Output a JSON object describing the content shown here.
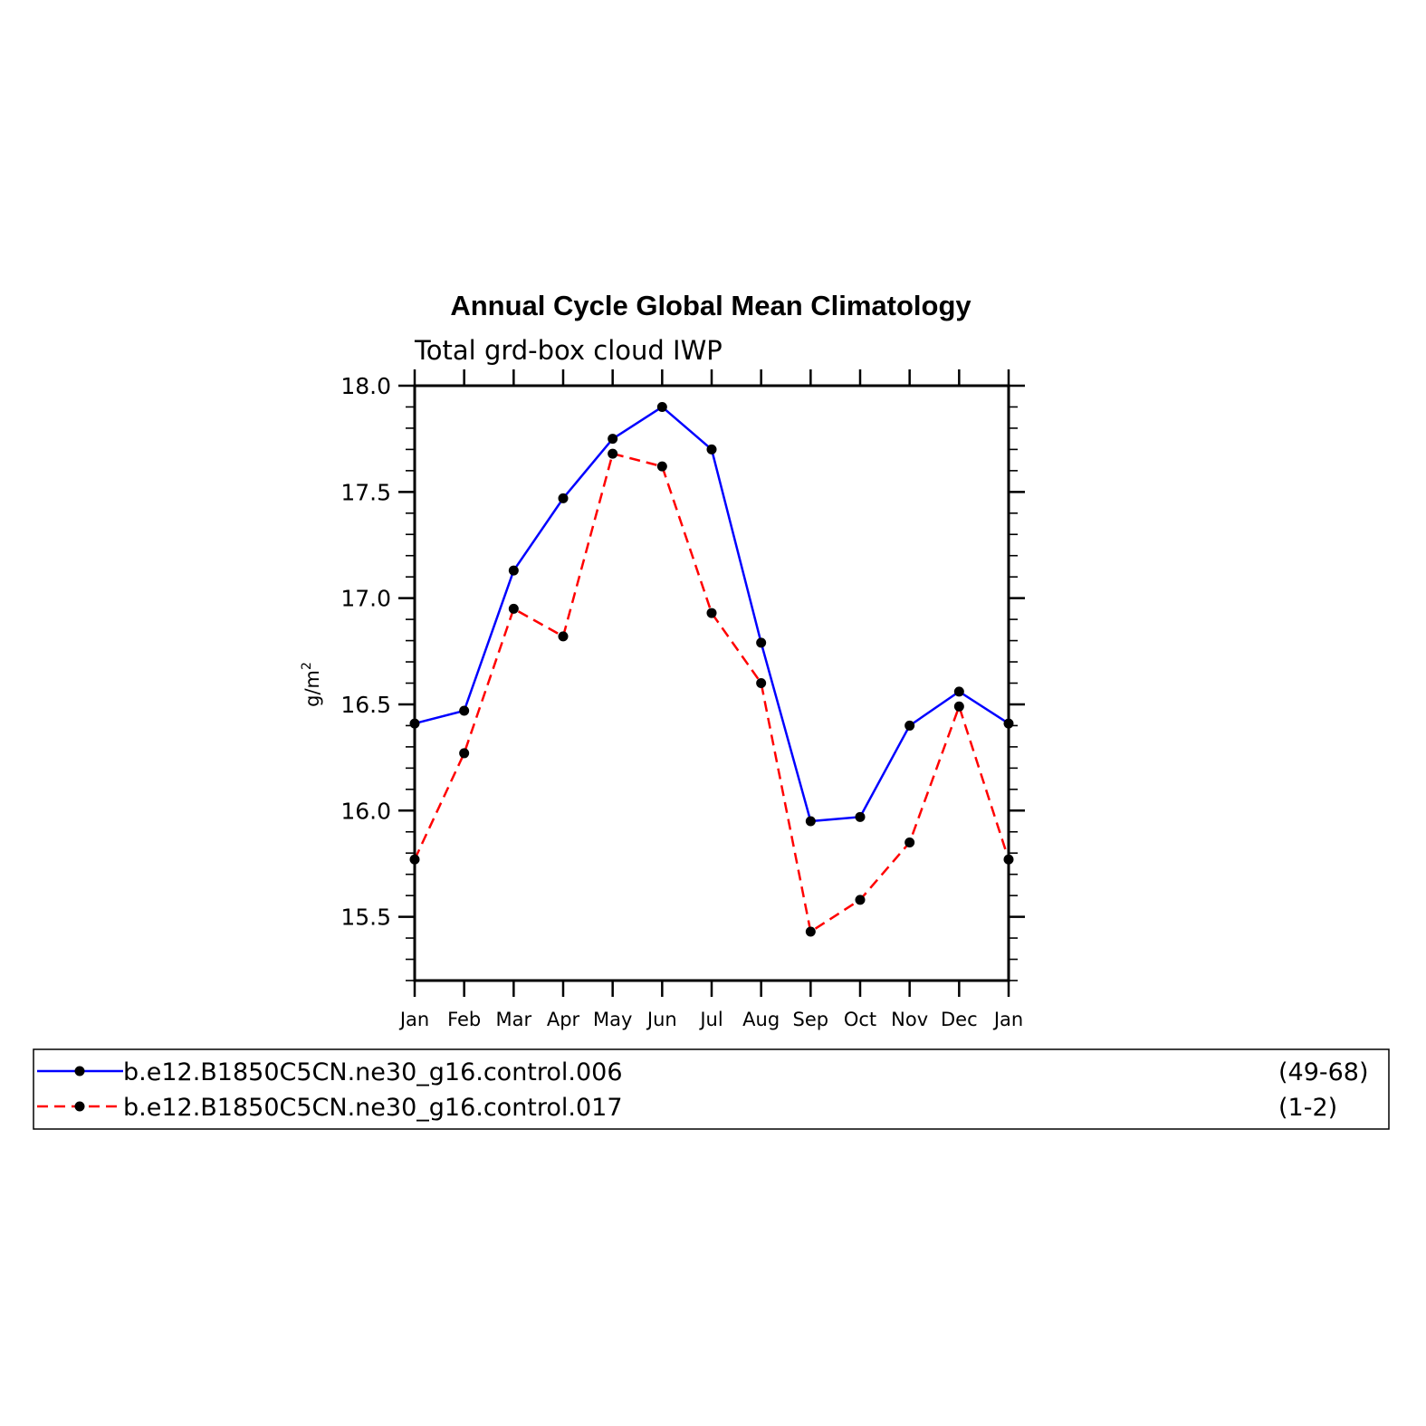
{
  "chart_data": {
    "type": "line",
    "title": "Annual Cycle Global Mean Climatology",
    "subtitle": "Total grd-box cloud IWP",
    "xlabel": "",
    "ylabel": "g/m",
    "ylabel_superscript": "2",
    "categories": [
      "Jan",
      "Feb",
      "Mar",
      "Apr",
      "May",
      "Jun",
      "Jul",
      "Aug",
      "Sep",
      "Oct",
      "Nov",
      "Dec",
      "Jan"
    ],
    "ylim": [
      15.2,
      18.0
    ],
    "yticks": [
      "15.5",
      "16.0",
      "16.5",
      "17.0",
      "17.5",
      "18.0"
    ],
    "grid": false,
    "legend_position": "bottom",
    "series": [
      {
        "name": "b.e12.B1850C5CN.ne30_g16.control.006",
        "years": "(49-68)",
        "color": "#0000ff",
        "dash": "solid",
        "values": [
          16.41,
          16.47,
          17.13,
          17.47,
          17.75,
          17.9,
          17.7,
          16.79,
          15.95,
          15.97,
          16.4,
          16.56,
          16.41
        ]
      },
      {
        "name": "b.e12.B1850C5CN.ne30_g16.control.017",
        "years": "(1-2)",
        "color": "#ff0000",
        "dash": "dashed",
        "values": [
          15.77,
          16.27,
          16.95,
          16.82,
          17.68,
          17.62,
          16.93,
          16.6,
          15.43,
          15.58,
          15.85,
          16.49,
          15.77
        ]
      }
    ],
    "marker_color": "#000000"
  }
}
